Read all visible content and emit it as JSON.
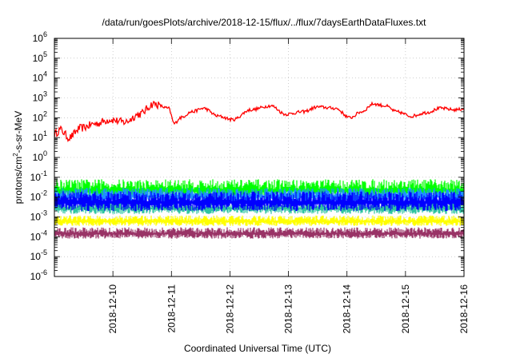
{
  "chart_data": {
    "type": "line",
    "title": "/data/run/goesPlots/archive/2018-12-15/flux/../flux/7daysEarthDataFluxes.txt",
    "xlabel": "Coordinated Universal Time (UTC)",
    "ylabel_base": "protons/cm",
    "ylabel_sup": "2",
    "ylabel_tail": "-s-sr-MeV",
    "xlim": [
      0,
      7
    ],
    "x_tick_labels": [
      "2018-12-10",
      "2018-12-11",
      "2018-12-12",
      "2018-12-13",
      "2018-12-14",
      "2018-12-15",
      "2018-12-16"
    ],
    "y_scale": "log",
    "ylim": [
      1e-06,
      1000000.0
    ],
    "y_tick_labels": [
      {
        "base": "10",
        "exp": "-6"
      },
      {
        "base": "10",
        "exp": "-5"
      },
      {
        "base": "10",
        "exp": "-4"
      },
      {
        "base": "10",
        "exp": "-3"
      },
      {
        "base": "10",
        "exp": "-2"
      },
      {
        "base": "10",
        "exp": "-1"
      },
      {
        "base": "10",
        "exp": "0"
      },
      {
        "base": "10",
        "exp": "1"
      },
      {
        "base": "10",
        "exp": "2"
      },
      {
        "base": "10",
        "exp": "3"
      },
      {
        "base": "10",
        "exp": "4"
      },
      {
        "base": "10",
        "exp": "5"
      },
      {
        "base": "10",
        "exp": "6"
      }
    ],
    "grid": true,
    "series": [
      {
        "color": "#ff0000",
        "style": "line",
        "noise": 0.08,
        "x": [
          0,
          0.1,
          0.25,
          0.45,
          0.7,
          0.95,
          1.2,
          1.45,
          1.7,
          1.95,
          2.05,
          2.15,
          2.35,
          2.55,
          2.8,
          3.05,
          3.35,
          3.7,
          3.95,
          4.25,
          4.5,
          4.8,
          5.05,
          5.25,
          5.45,
          5.65,
          5.85,
          6.1,
          6.35,
          6.6,
          6.85,
          7.0
        ],
        "y": [
          15,
          25,
          10,
          30,
          50,
          80,
          60,
          150,
          500,
          300,
          50,
          100,
          200,
          300,
          120,
          80,
          250,
          400,
          150,
          200,
          350,
          300,
          100,
          200,
          500,
          400,
          200,
          120,
          180,
          300,
          250,
          280
        ]
      },
      {
        "color": "#00ff00",
        "style": "band",
        "low": 0.006,
        "high": 0.08
      },
      {
        "color": "#1e90ff",
        "style": "band",
        "low": 0.004,
        "high": 0.03
      },
      {
        "color": "#2ec4a0",
        "style": "band",
        "low": 0.0012,
        "high": 0.006
      },
      {
        "color": "#0000ff",
        "style": "band",
        "low": 0.0015,
        "high": 0.02
      },
      {
        "color": "#ffff00",
        "style": "band",
        "low": 0.0003,
        "high": 0.0012
      },
      {
        "color": "#993366",
        "style": "band",
        "low": 7e-05,
        "high": 0.0003
      }
    ]
  }
}
